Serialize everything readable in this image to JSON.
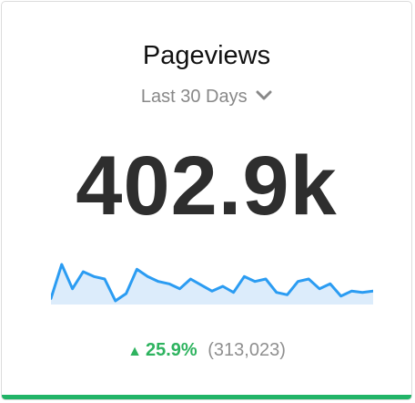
{
  "widget": {
    "title": "Pageviews",
    "range_label": "Last 30 Days",
    "range_icon": "chevron-down-icon",
    "value": "402.9k",
    "change_icon": "triangle-up-icon",
    "change_percent": "25.9%",
    "previous_value": "(313,023)",
    "colors": {
      "accent_green": "#21b467",
      "line_blue": "#2b9cf2",
      "fill_blue": "#dcecfb"
    }
  },
  "chart_data": {
    "type": "line",
    "values": [
      4,
      32,
      12,
      26,
      22,
      20,
      2,
      8,
      28,
      22,
      18,
      16,
      12,
      20,
      15,
      10,
      14,
      9,
      22,
      18,
      20,
      9,
      7,
      18,
      20,
      12,
      16,
      6,
      10,
      9,
      10
    ]
  }
}
